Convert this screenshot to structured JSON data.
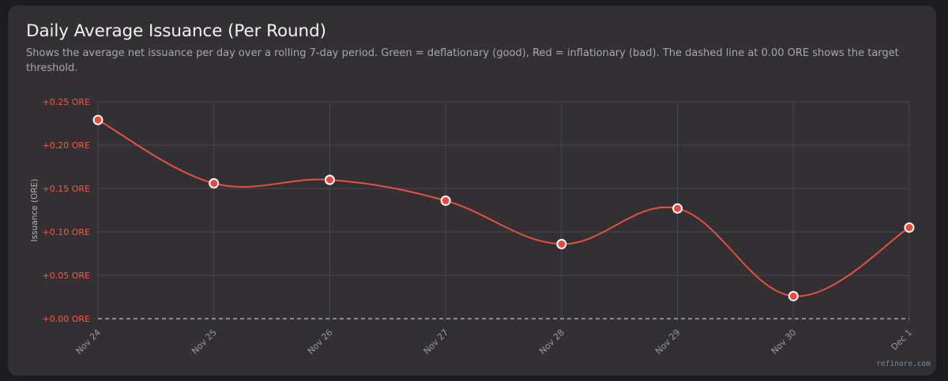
{
  "header": {
    "title": "Daily Average Issuance (Per Round)",
    "subtitle": "Shows the average net issuance per day over a rolling 7-day period. Green = deflationary (good), Red = inflationary (bad). The dashed line at 0.00 ORE shows the target threshold."
  },
  "watermark": "refinore.com",
  "colors": {
    "card_background": "#323033",
    "line": "#e8503f",
    "point_fill": "#f0453a",
    "point_stroke": "#ffffff",
    "tick_y": "#f05a48",
    "tick_x": "#9c9aa0",
    "grid": "#4a484c",
    "threshold": "#bdbbc0"
  },
  "chart_data": {
    "type": "line",
    "xlabel": "",
    "ylabel": "Issuance (ORE)",
    "categories": [
      "Nov 24",
      "Nov 25",
      "Nov 26",
      "Nov 27",
      "Nov 28",
      "Nov 29",
      "Nov 30",
      "Dec 1"
    ],
    "values": [
      0.229,
      0.156,
      0.16,
      0.136,
      0.086,
      0.127,
      0.026,
      0.105
    ],
    "ylim": [
      0,
      0.25
    ],
    "yticks": [
      0.25,
      0.2,
      0.15,
      0.1,
      0.05,
      0.0
    ],
    "ytick_labels": [
      "+0.25 ORE",
      "+0.20 ORE",
      "+0.15 ORE",
      "+0.10 ORE",
      "+0.05 ORE",
      "+0.00 ORE"
    ],
    "threshold": 0,
    "threshold_style": "dashed",
    "grid": true,
    "smooth": true,
    "markers": true,
    "legend": "none"
  }
}
